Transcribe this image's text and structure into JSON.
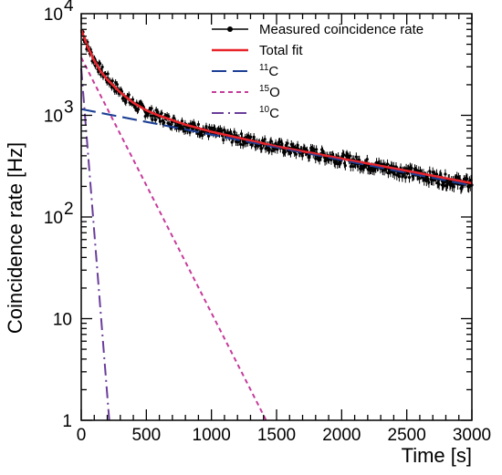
{
  "chart_data": {
    "type": "scatter",
    "xlabel": "Time [s]",
    "ylabel": "Coincidence rate [Hz]",
    "xlim": [
      0,
      3000
    ],
    "ylim": [
      1,
      10000
    ],
    "yscale": "log",
    "grid": false,
    "legend_position": "top-right",
    "x_ticks": [
      {
        "value": 0,
        "label": "0"
      },
      {
        "value": 500,
        "label": "500"
      },
      {
        "value": 1000,
        "label": "1000"
      },
      {
        "value": 1500,
        "label": "1500"
      },
      {
        "value": 2000,
        "label": "2000"
      },
      {
        "value": 2500,
        "label": "2500"
      },
      {
        "value": 3000,
        "label": "3000"
      }
    ],
    "y_ticks": [
      {
        "value": 1,
        "base": "1",
        "exp": ""
      },
      {
        "value": 10,
        "base": "10",
        "exp": ""
      },
      {
        "value": 100,
        "base": "10",
        "exp": "2"
      },
      {
        "value": 1000,
        "base": "10",
        "exp": "3"
      },
      {
        "value": 10000,
        "base": "10",
        "exp": "4"
      }
    ],
    "series": [
      {
        "name": "Measured coincidence rate",
        "kind": "points",
        "color": "#000000",
        "x": [
          10,
          50,
          100,
          150,
          200,
          300,
          400,
          500,
          600,
          700,
          800,
          900,
          1000,
          1200,
          1400,
          1600,
          1800,
          2000,
          2200,
          2400,
          2600,
          2800,
          2950
        ],
        "y": [
          6600,
          4700,
          3500,
          2800,
          2300,
          1700,
          1300,
          1100,
          970,
          870,
          800,
          740,
          680,
          600,
          530,
          470,
          420,
          375,
          330,
          295,
          262,
          233,
          215
        ]
      },
      {
        "name": "Total fit",
        "kind": "line",
        "color": "#e8242b",
        "x": [
          0,
          50,
          100,
          150,
          200,
          300,
          400,
          500,
          600,
          800,
          1000,
          1500,
          2000,
          2500,
          3000
        ],
        "y": [
          6950,
          4700,
          3450,
          2700,
          2250,
          1680,
          1330,
          1120,
          990,
          810,
          690,
          495,
          375,
          285,
          215
        ]
      },
      {
        "name": "C",
        "name_prefix": "11",
        "kind": "line",
        "dash": "long-dash",
        "color": "#1c3f94",
        "x": [
          0,
          3000
        ],
        "y": [
          1150,
          204
        ]
      },
      {
        "name": "O",
        "name_prefix": "15",
        "kind": "line",
        "dash": "short-dash",
        "color": "#c63b9b",
        "x": [
          0,
          1420
        ],
        "y": [
          3700,
          1
        ]
      },
      {
        "name": "C",
        "name_prefix": "10",
        "kind": "line",
        "dash": "dash-dot",
        "color": "#6a3d9a",
        "x": [
          0,
          215
        ],
        "y": [
          2900,
          1
        ]
      }
    ]
  }
}
